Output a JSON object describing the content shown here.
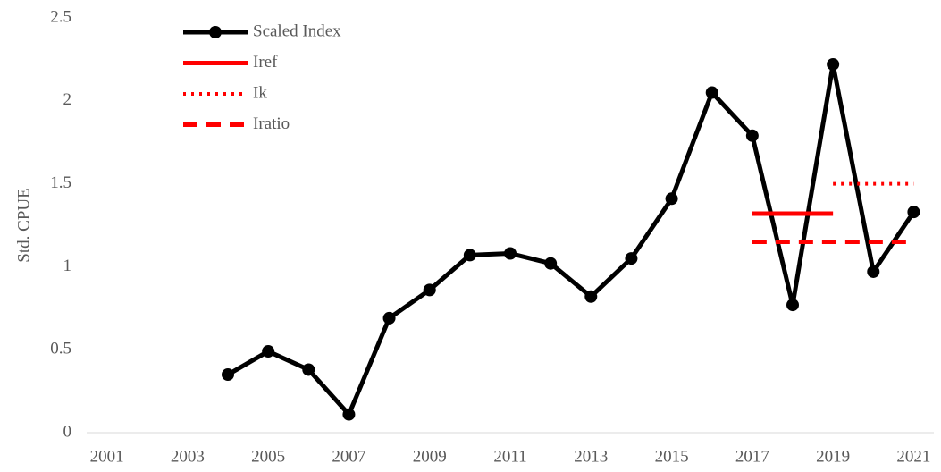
{
  "chart_data": {
    "type": "line",
    "y_label": "Std. CPUE",
    "categories": [
      "2001",
      null,
      "2003",
      null,
      "2005",
      null,
      "2007",
      null,
      "2009",
      null,
      "2011",
      null,
      "2013",
      null,
      "2015",
      null,
      "2017",
      null,
      "2019",
      null,
      "2021"
    ],
    "series": [
      {
        "name": "Scaled Index",
        "color": "#000000",
        "dash": "solid",
        "marker": true,
        "values": [
          null,
          null,
          null,
          0.35,
          0.49,
          0.38,
          0.11,
          0.69,
          0.86,
          1.07,
          1.08,
          1.02,
          0.82,
          1.05,
          1.41,
          2.05,
          1.79,
          0.77,
          2.22,
          0.97,
          1.33
        ]
      },
      {
        "name": "Iref",
        "color": "#ff0000",
        "dash": "solid",
        "marker": false,
        "values": [
          null,
          null,
          null,
          null,
          null,
          null,
          null,
          null,
          null,
          null,
          null,
          null,
          null,
          null,
          null,
          null,
          1.32,
          1.32,
          1.32,
          null,
          null
        ]
      },
      {
        "name": "Ik",
        "color": "#ff0000",
        "dash": "dotted",
        "marker": false,
        "values": [
          null,
          null,
          null,
          null,
          null,
          null,
          null,
          null,
          null,
          null,
          null,
          null,
          null,
          null,
          null,
          null,
          null,
          null,
          1.5,
          1.5,
          1.5
        ]
      },
      {
        "name": "Iratio",
        "color": "#ff0000",
        "dash": "dashed",
        "marker": false,
        "values": [
          null,
          null,
          null,
          null,
          null,
          null,
          null,
          null,
          null,
          null,
          null,
          null,
          null,
          null,
          null,
          null,
          1.15,
          1.15,
          1.15,
          1.15,
          1.15
        ]
      }
    ],
    "ylim": [
      0,
      2.5
    ],
    "yticks": [
      0,
      0.5,
      1,
      1.5,
      2,
      2.5
    ],
    "grid": false,
    "legend": "upper-left"
  }
}
